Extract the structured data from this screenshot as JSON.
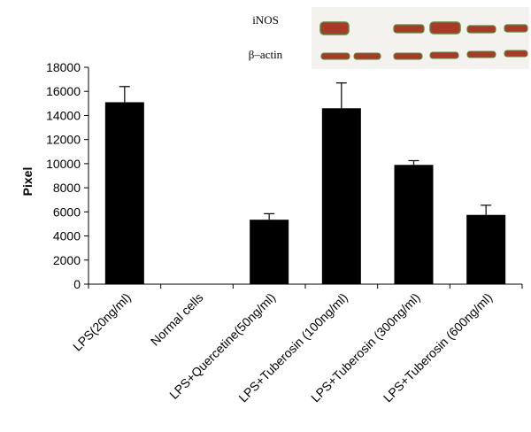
{
  "chart_data": {
    "type": "bar",
    "y_label": "Pixel",
    "blot_labels": [
      "iNOS",
      "β–actin"
    ],
    "categories": [
      "LPS(20ng/ml)",
      "Normal cells",
      "LPS+Quercetine(50ng/ml)",
      "LPS+Tuberosin (100ng/ml)",
      "LPS+Tuberosin (300ng/ml)",
      "LPS+Tuberosin (600ng/ml)"
    ],
    "values": [
      15100,
      0,
      5350,
      14600,
      9900,
      5750
    ],
    "errors": [
      1300,
      0,
      500,
      2100,
      350,
      800
    ],
    "color": "#000000",
    "ylim": [
      0,
      18000
    ],
    "yticks": [
      0,
      2000,
      4000,
      6000,
      8000,
      10000,
      12000,
      14000,
      16000,
      18000
    ]
  }
}
